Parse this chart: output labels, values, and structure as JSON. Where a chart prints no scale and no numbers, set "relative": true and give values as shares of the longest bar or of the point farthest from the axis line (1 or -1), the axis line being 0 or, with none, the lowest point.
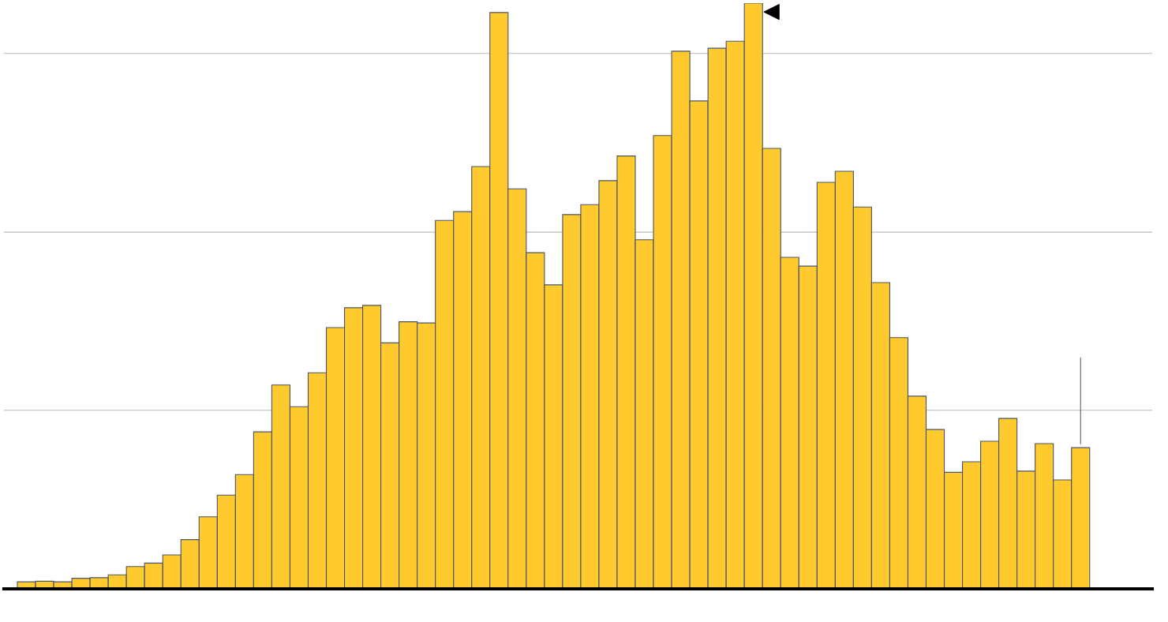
{
  "chart_data": {
    "type": "bar",
    "relative": true,
    "legend": false,
    "ref_lines": [
      {
        "axis": "y",
        "value": 0.305,
        "color": "#bbbbbb"
      },
      {
        "axis": "y",
        "value": 0.609,
        "color": "#bbbbbb"
      },
      {
        "axis": "y",
        "value": 0.914,
        "color": "#bbbbbb"
      }
    ],
    "categories": [
      null,
      null,
      null,
      null,
      null,
      null,
      null,
      null,
      null,
      null,
      null,
      null,
      null,
      null,
      null,
      null,
      null,
      null,
      null,
      null,
      null,
      null,
      null,
      null,
      null,
      null,
      null,
      null,
      null,
      null,
      null,
      null,
      null,
      null,
      null,
      null,
      null,
      null,
      null,
      null,
      null,
      null,
      null,
      null,
      null,
      null,
      null,
      null,
      null,
      null,
      null,
      null,
      null,
      null,
      null,
      null,
      null,
      null,
      null
    ],
    "series": [
      {
        "color": "#ffca2e",
        "values": [
          0.012,
          0.013,
          0.012,
          0.018,
          0.019,
          0.024,
          0.038,
          0.044,
          0.058,
          0.084,
          0.123,
          0.16,
          0.195,
          0.268,
          0.348,
          0.311,
          0.369,
          0.446,
          0.48,
          0.484,
          0.42,
          0.456,
          0.454,
          0.629,
          0.644,
          0.721,
          0.984,
          0.683,
          0.574,
          0.519,
          0.639,
          0.656,
          0.697,
          0.739,
          0.596,
          0.774,
          0.918,
          0.833,
          0.923,
          0.935,
          1,
          0.752,
          0.566,
          0.551,
          0.694,
          0.713,
          0.652,
          0.523,
          0.429,
          0.329,
          0.272,
          0.199,
          0.217,
          0.252,
          0.291,
          0.201,
          0.248,
          0.186,
          0.241
        ]
      }
    ]
  }
}
